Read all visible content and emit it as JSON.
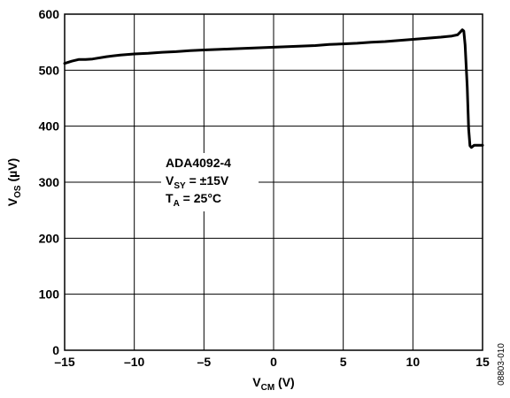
{
  "chart_data": {
    "type": "line",
    "xlabel": {
      "main": "V",
      "sub": "CM",
      "unit": " (V)"
    },
    "ylabel": {
      "main": "V",
      "sub": "OS",
      "unit": " (µV)"
    },
    "xlim": [
      -15,
      15
    ],
    "ylim": [
      0,
      600
    ],
    "xticks": [
      "–15",
      "–10",
      "–5",
      "0",
      "5",
      "10",
      "15"
    ],
    "yticks": [
      "0",
      "100",
      "200",
      "300",
      "400",
      "500",
      "600"
    ],
    "grid": true,
    "series": [
      {
        "color": "#000000",
        "x": [
          -15,
          -14.5,
          -14,
          -13.5,
          -13,
          -12,
          -11,
          -10,
          -9,
          -8,
          -7,
          -6,
          -5,
          -4,
          -3,
          -2,
          -1,
          0,
          1,
          2,
          3,
          4,
          5,
          6,
          7,
          8,
          9,
          10,
          11,
          12,
          12.8,
          13.2,
          13.4,
          13.55,
          13.65,
          13.75,
          13.9,
          14.0,
          14.1,
          14.2,
          14.4,
          14.6,
          14.8,
          15
        ],
        "y": [
          512,
          516,
          519,
          519,
          520,
          524,
          527,
          529,
          530,
          532,
          533,
          535,
          536,
          537,
          538,
          539,
          540,
          541,
          542,
          543,
          544,
          546,
          547,
          548,
          550,
          551,
          553,
          555,
          557,
          559,
          561,
          563,
          568,
          572,
          570,
          545,
          470,
          395,
          365,
          362,
          366,
          366,
          366,
          366
        ]
      }
    ],
    "annotation": [
      {
        "main": "ADA4092-4"
      },
      {
        "main": "V",
        "sub": "SY",
        "rest": " = ±15V"
      },
      {
        "main": "T",
        "sub": "A",
        "rest": " = 25°C"
      }
    ],
    "figure_id": "08803-010"
  }
}
